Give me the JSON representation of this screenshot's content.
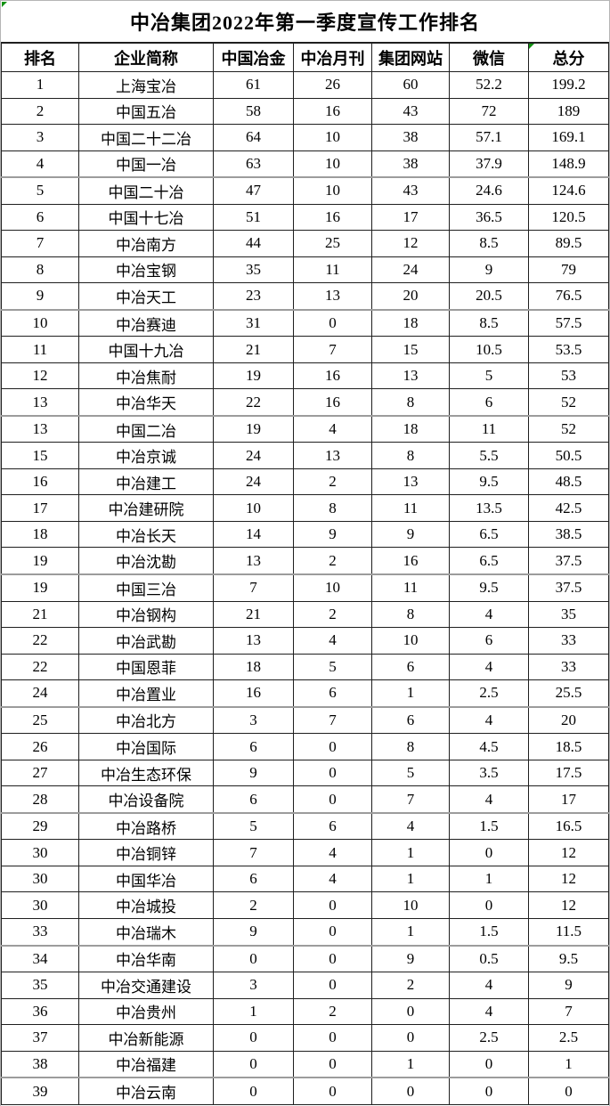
{
  "title": "中冶集团2022年第一季度宣传工作排名",
  "colors": {
    "border": "#1f1f1f",
    "group_separator": "#9c9c9c",
    "error_indicator": "#129212",
    "outer_edge": "#b5b5b5",
    "background": "#ffffff",
    "text": "#000000"
  },
  "icons": {
    "title_corner": "excel-error-indicator-triangle",
    "total_header_corner": "excel-error-indicator-triangle"
  },
  "table": {
    "columns": [
      "排名",
      "企业简称",
      "中国冶金",
      "中冶月刊",
      "集团网站",
      "微信",
      "总分"
    ],
    "column_keys": [
      "rank",
      "company",
      "china-metallurgy",
      "mcc-monthly",
      "group-website",
      "wechat",
      "total-score"
    ],
    "rows": [
      [
        "1",
        "上海宝冶",
        "61",
        "26",
        "60",
        "52.2",
        "199.2"
      ],
      [
        "2",
        "中国五冶",
        "58",
        "16",
        "43",
        "72",
        "189"
      ],
      [
        "3",
        "中国二十二冶",
        "64",
        "10",
        "38",
        "57.1",
        "169.1"
      ],
      [
        "4",
        "中国一冶",
        "63",
        "10",
        "38",
        "37.9",
        "148.9"
      ],
      [
        "5",
        "中国二十冶",
        "47",
        "10",
        "43",
        "24.6",
        "124.6"
      ],
      [
        "6",
        "中国十七冶",
        "51",
        "16",
        "17",
        "36.5",
        "120.5"
      ],
      [
        "7",
        "中冶南方",
        "44",
        "25",
        "12",
        "8.5",
        "89.5"
      ],
      [
        "8",
        "中冶宝钢",
        "35",
        "11",
        "24",
        "9",
        "79"
      ],
      [
        "9",
        "中冶天工",
        "23",
        "13",
        "20",
        "20.5",
        "76.5"
      ],
      [
        "10",
        "中冶赛迪",
        "31",
        "0",
        "18",
        "8.5",
        "57.5"
      ],
      [
        "11",
        "中国十九冶",
        "21",
        "7",
        "15",
        "10.5",
        "53.5"
      ],
      [
        "12",
        "中冶焦耐",
        "19",
        "16",
        "13",
        "5",
        "53"
      ],
      [
        "13",
        "中冶华天",
        "22",
        "16",
        "8",
        "6",
        "52"
      ],
      [
        "13",
        "中国二冶",
        "19",
        "4",
        "18",
        "11",
        "52"
      ],
      [
        "15",
        "中冶京诚",
        "24",
        "13",
        "8",
        "5.5",
        "50.5"
      ],
      [
        "16",
        "中冶建工",
        "24",
        "2",
        "13",
        "9.5",
        "48.5"
      ],
      [
        "17",
        "中冶建研院",
        "10",
        "8",
        "11",
        "13.5",
        "42.5"
      ],
      [
        "18",
        "中冶长天",
        "14",
        "9",
        "9",
        "6.5",
        "38.5"
      ],
      [
        "19",
        "中冶沈勘",
        "13",
        "2",
        "16",
        "6.5",
        "37.5"
      ],
      [
        "19",
        "中国三冶",
        "7",
        "10",
        "11",
        "9.5",
        "37.5"
      ],
      [
        "21",
        "中冶钢构",
        "21",
        "2",
        "8",
        "4",
        "35"
      ],
      [
        "22",
        "中冶武勘",
        "13",
        "4",
        "10",
        "6",
        "33"
      ],
      [
        "22",
        "中国恩菲",
        "18",
        "5",
        "6",
        "4",
        "33"
      ],
      [
        "24",
        "中冶置业",
        "16",
        "6",
        "1",
        "2.5",
        "25.5"
      ],
      [
        "25",
        "中冶北方",
        "3",
        "7",
        "6",
        "4",
        "20"
      ],
      [
        "26",
        "中冶国际",
        "6",
        "0",
        "8",
        "4.5",
        "18.5"
      ],
      [
        "27",
        "中冶生态环保",
        "9",
        "0",
        "5",
        "3.5",
        "17.5"
      ],
      [
        "28",
        "中冶设备院",
        "6",
        "0",
        "7",
        "4",
        "17"
      ],
      [
        "29",
        "中冶路桥",
        "5",
        "6",
        "4",
        "1.5",
        "16.5"
      ],
      [
        "30",
        "中冶铜锌",
        "7",
        "4",
        "1",
        "0",
        "12"
      ],
      [
        "30",
        "中国华冶",
        "6",
        "4",
        "1",
        "1",
        "12"
      ],
      [
        "30",
        "中冶城投",
        "2",
        "0",
        "10",
        "0",
        "12"
      ],
      [
        "33",
        "中冶瑞木",
        "9",
        "0",
        "1",
        "1.5",
        "11.5"
      ],
      [
        "34",
        "中冶华南",
        "0",
        "0",
        "9",
        "0.5",
        "9.5"
      ],
      [
        "35",
        "中冶交通建设",
        "3",
        "0",
        "2",
        "4",
        "9"
      ],
      [
        "36",
        "中冶贵州",
        "1",
        "2",
        "0",
        "4",
        "7"
      ],
      [
        "37",
        "中冶新能源",
        "0",
        "0",
        "0",
        "2.5",
        "2.5"
      ],
      [
        "38",
        "中冶福建",
        "0",
        "0",
        "1",
        "0",
        "1"
      ],
      [
        "39",
        "中冶云南",
        "0",
        "0",
        "0",
        "0",
        "0"
      ]
    ],
    "group_separator_after_rows": [
      4,
      9,
      13,
      19,
      24,
      28,
      33,
      38
    ]
  }
}
